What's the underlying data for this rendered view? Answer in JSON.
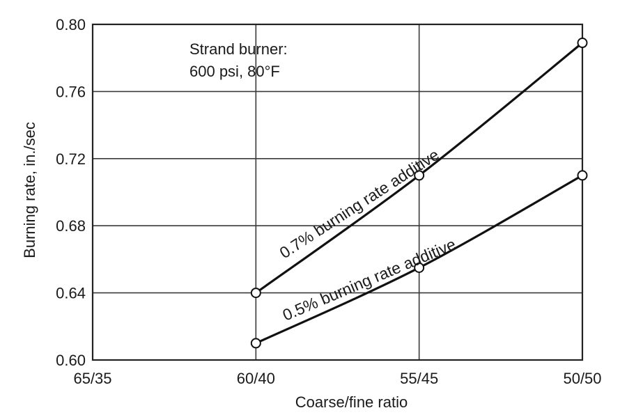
{
  "chart_data": {
    "type": "line",
    "categories": [
      "65/35",
      "60/40",
      "55/45",
      "50/50"
    ],
    "xlabel": "Coarse/fine ratio",
    "ylabel": "Burning rate, in./sec",
    "ylim": [
      0.6,
      0.8
    ],
    "yticks": [
      "0.60",
      "0.64",
      "0.68",
      "0.72",
      "0.76",
      "0.80"
    ],
    "grid": true,
    "annotation": [
      "Strand burner:",
      "600 psi, 80°F"
    ],
    "series": [
      {
        "name": "0.7% burning rate additive",
        "x": [
          "60/40",
          "55/45",
          "50/50"
        ],
        "values": [
          0.64,
          0.71,
          0.789
        ]
      },
      {
        "name": "0.5% burning rate additive",
        "x": [
          "60/40",
          "55/45",
          "50/50"
        ],
        "values": [
          0.61,
          0.655,
          0.71
        ]
      }
    ]
  }
}
